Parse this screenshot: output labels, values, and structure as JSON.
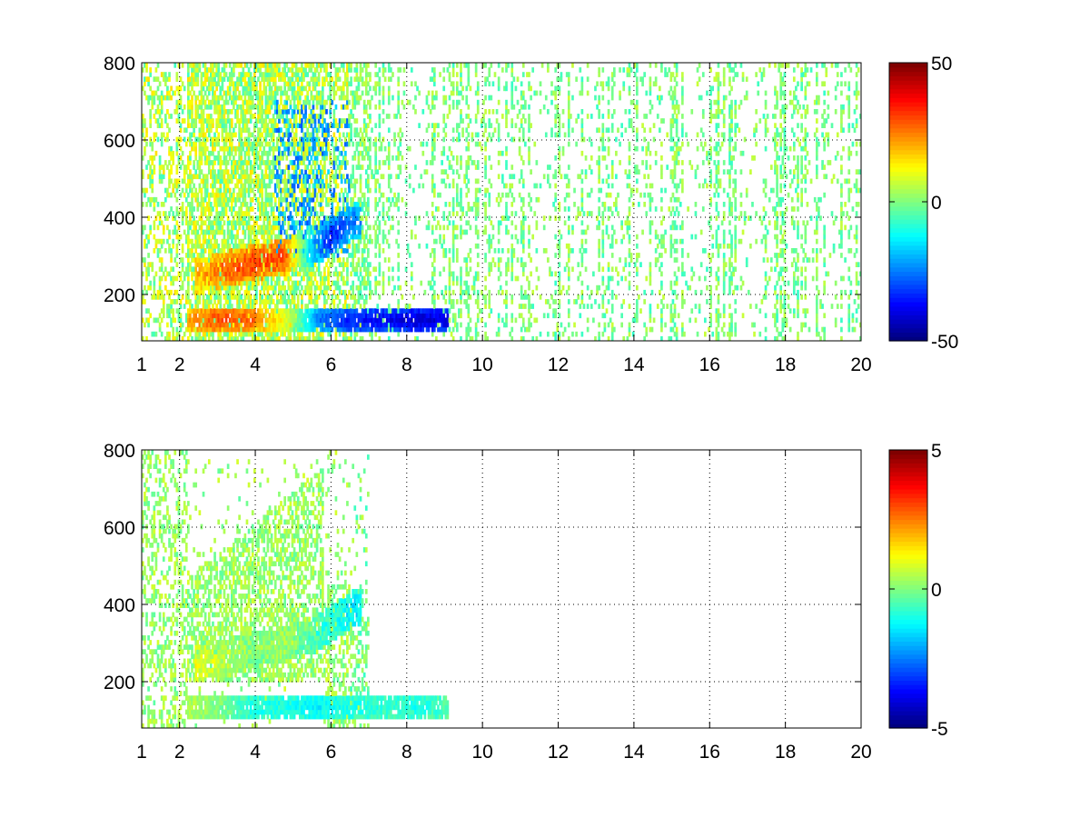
{
  "chart_data": [
    {
      "type": "heatmap",
      "title": "",
      "xlabel": "",
      "ylabel": "",
      "xlim": [
        1,
        20
      ],
      "ylim": [
        80,
        800
      ],
      "xticks": [
        1,
        2,
        4,
        6,
        8,
        10,
        12,
        14,
        16,
        18,
        20
      ],
      "yticks": [
        200,
        400,
        600,
        800
      ],
      "grid": true,
      "colormap": "jet",
      "colorbar": {
        "min": -50,
        "max": 50,
        "ticks": [
          -50,
          0,
          50
        ]
      },
      "features": [
        {
          "name": "lower band",
          "x_range": [
            2.2,
            9.1
          ],
          "y": 135,
          "values": [
            22,
            30,
            28,
            10,
            -25,
            -35,
            -38,
            -42,
            -40
          ]
        },
        {
          "name": "curved band",
          "points": [
            [
              2.6,
              250
            ],
            [
              3.2,
              265
            ],
            [
              4.0,
              285
            ],
            [
              4.8,
              300
            ],
            [
              5.5,
              320
            ],
            [
              6.0,
              350
            ],
            [
              6.6,
              390
            ]
          ],
          "values": [
            20,
            28,
            32,
            30,
            -20,
            -35,
            -25
          ]
        }
      ]
    },
    {
      "type": "heatmap",
      "title": "",
      "xlabel": "",
      "ylabel": "",
      "xlim": [
        1,
        20
      ],
      "ylim": [
        80,
        800
      ],
      "xticks": [
        1,
        2,
        4,
        6,
        8,
        10,
        12,
        14,
        16,
        18,
        20
      ],
      "yticks": [
        200,
        400,
        600,
        800
      ],
      "grid": true,
      "colormap": "jet",
      "colorbar": {
        "min": -5,
        "max": 5,
        "ticks": [
          -5,
          0,
          5
        ]
      },
      "features": [
        {
          "name": "lower band",
          "x_range": [
            2.2,
            9.1
          ],
          "y": 135,
          "values": [
            0.5,
            0,
            -1,
            -1,
            -1.3,
            -1,
            -0.8,
            -1,
            -0.5
          ]
        },
        {
          "name": "curved band",
          "points": [
            [
              2.6,
              250
            ],
            [
              3.2,
              265
            ],
            [
              4.0,
              285
            ],
            [
              4.8,
              300
            ],
            [
              5.5,
              320
            ],
            [
              6.0,
              350
            ],
            [
              6.6,
              390
            ]
          ],
          "values": [
            1,
            0.5,
            0,
            0.3,
            -0.5,
            -1,
            -1.5
          ]
        }
      ]
    }
  ]
}
